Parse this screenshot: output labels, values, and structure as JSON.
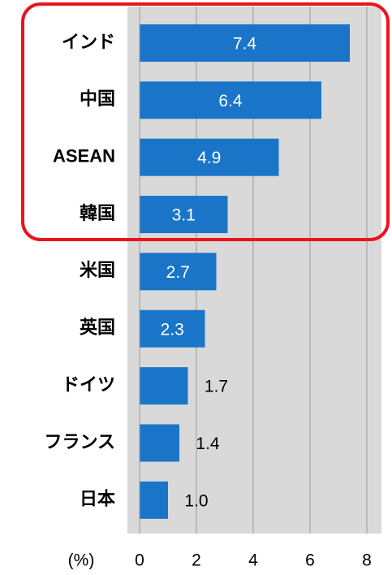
{
  "chart_data": {
    "type": "bar",
    "orientation": "horizontal",
    "categories": [
      "インド",
      "中国",
      "ASEAN",
      "韓国",
      "米国",
      "英国",
      "ドイツ",
      "フランス",
      "日本"
    ],
    "values": [
      7.4,
      6.4,
      4.9,
      3.1,
      2.7,
      2.3,
      1.7,
      1.4,
      1.0
    ],
    "value_labels": [
      "7.4",
      "6.4",
      "4.9",
      "3.1",
      "2.7",
      "2.3",
      "1.7",
      "1.4",
      "1.0"
    ],
    "color": "#1a75c9",
    "xlim": [
      0,
      8
    ],
    "xticks": [
      0,
      2,
      4,
      6,
      8
    ],
    "x_label": "(%)",
    "grid": true
  }
}
